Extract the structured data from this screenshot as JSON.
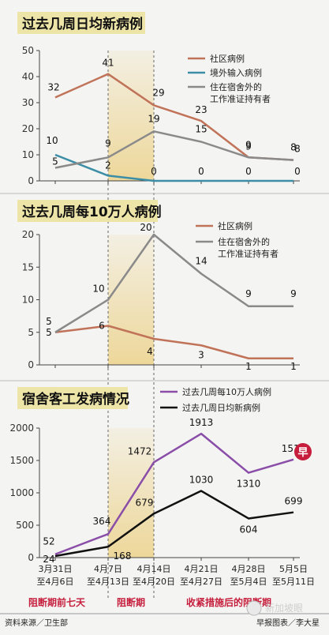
{
  "colors": {
    "background": "#f4f4f2",
    "title_bar": "#ede5a8",
    "highlight": "#ecd28a",
    "community": "#c07358",
    "imported": "#3c8ea6",
    "dorm_worker": "#8a8a8a",
    "purple": "#8a4ea8",
    "black": "#111111",
    "phase_red": "#c51d3b",
    "axis": "#444444",
    "grid": "#cccccc"
  },
  "footer": {
    "source": "资料来源／卫生部",
    "credit": "早报图表／李大星",
    "watermark": "新加坡眼"
  },
  "chart_data": [
    {
      "type": "line",
      "title": "过去几周日均新病例",
      "ylim": [
        0,
        50
      ],
      "yticks": [
        "0",
        "10",
        "20",
        "30",
        "40",
        "50"
      ],
      "series": [
        {
          "name": "社区病例",
          "values": [
            32,
            41,
            29,
            23,
            9,
            8
          ]
        },
        {
          "name": "境外输入病例",
          "values": [
            10,
            2,
            0,
            0,
            0,
            0
          ]
        },
        {
          "name": "住在宿舍外的工作准证持有者",
          "values": [
            5,
            9,
            19,
            15,
            9,
            8
          ]
        }
      ],
      "legend": [
        "社区病例",
        "境外输入病例",
        "住在宿舍外的",
        "工作准证持有者"
      ]
    },
    {
      "type": "line",
      "title": "过去几周每10万人病例",
      "ylim": [
        0,
        20
      ],
      "yticks": [
        "0",
        "5",
        "10",
        "15",
        "20"
      ],
      "series": [
        {
          "name": "社区病例",
          "values": [
            5,
            6,
            4,
            3,
            1,
            1
          ]
        },
        {
          "name": "住在宿舍外的工作准证持有者",
          "values": [
            5,
            10,
            20,
            14,
            9,
            9
          ]
        }
      ],
      "legend": [
        "社区病例",
        "住在宿舍外的",
        "工作准证持有者"
      ]
    },
    {
      "type": "line",
      "title": "宿舍客工发病情况",
      "ylim": [
        0,
        2000
      ],
      "yticks": [
        "0",
        "500",
        "1000",
        "1500",
        "2000"
      ],
      "series": [
        {
          "name": "过去几周每10万人病例",
          "values": [
            52,
            364,
            1472,
            1913,
            1310,
            1515
          ]
        },
        {
          "name": "过去几周日均新病例",
          "values": [
            24,
            168,
            679,
            1030,
            604,
            699
          ]
        }
      ],
      "legend": [
        "过去几周每10万人病例",
        "过去几周日均新病例"
      ],
      "categories": [
        [
          "3月31日",
          "至4月6日"
        ],
        [
          "4月7日",
          "至4月13日"
        ],
        [
          "4月14日",
          "至4月20日"
        ],
        [
          "4月21日",
          "至4月27日"
        ],
        [
          "4月28日",
          "至5月4日"
        ],
        [
          "5月5日",
          "至5月11日"
        ]
      ],
      "phases": [
        "阻断期前七天",
        "阻断期",
        "收紧措施后的阻断期"
      ]
    }
  ]
}
